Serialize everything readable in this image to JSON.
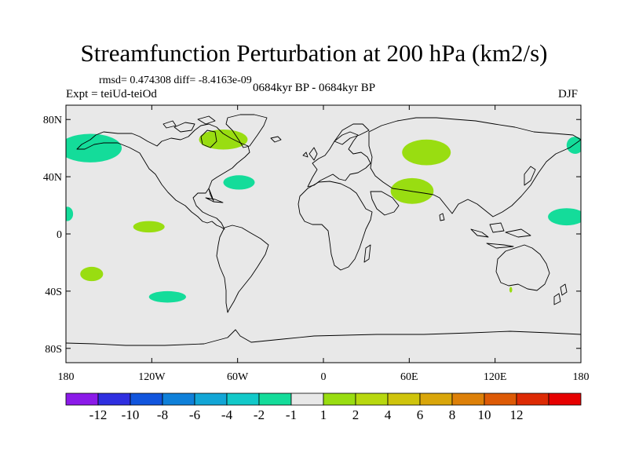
{
  "title": "Streamfunction Perturbation at 200 hPa (km2/s)",
  "stats": "rmsd= 0.474308 diff= -8.4163e-09",
  "experiment": "Expt = teiUd-teiOd",
  "period": "0684kyr BP - 0684kyr BP",
  "season": "DJF",
  "map": {
    "lon_range": [
      -180,
      180
    ],
    "lat_range": [
      -90,
      90
    ],
    "background_color": "#e8e8e8",
    "coast_color": "#000000",
    "y_ticks": [
      {
        "lat": 80,
        "label": "80N"
      },
      {
        "lat": 40,
        "label": "40N"
      },
      {
        "lat": 0,
        "label": "0"
      },
      {
        "lat": -40,
        "label": "40S"
      },
      {
        "lat": -80,
        "label": "80S"
      }
    ],
    "x_ticks": [
      {
        "lon": -180,
        "label": "180"
      },
      {
        "lon": -120,
        "label": "120W"
      },
      {
        "lon": -60,
        "label": "60W"
      },
      {
        "lon": 0,
        "label": "0"
      },
      {
        "lon": 60,
        "label": "60E"
      },
      {
        "lon": 120,
        "label": "120E"
      },
      {
        "lon": 180,
        "label": "180"
      }
    ],
    "anomaly_regions": [
      {
        "name": "north-pacific-low",
        "lon": -163,
        "lat": 60,
        "rlon": 22,
        "rlat": 10,
        "color": "#14dc9a"
      },
      {
        "name": "dateline-east-high-lat",
        "lon": 176,
        "lat": 62,
        "rlon": 6,
        "rlat": 6,
        "color": "#14dc9a"
      },
      {
        "name": "greenland-high",
        "lon": -70,
        "lat": 66,
        "rlon": 17,
        "rlat": 7,
        "color": "#99dd11"
      },
      {
        "name": "west-atlantic-low",
        "lon": -59,
        "lat": 36,
        "rlon": 11,
        "rlat": 5,
        "color": "#14dc9a"
      },
      {
        "name": "russia-high",
        "lon": 72,
        "lat": 57,
        "rlon": 17,
        "rlat": 9,
        "color": "#99dd11"
      },
      {
        "name": "middle-east-high",
        "lon": 62,
        "lat": 30,
        "rlon": 15,
        "rlat": 9,
        "color": "#99dd11"
      },
      {
        "name": "east-pacific-high",
        "lon": -122,
        "lat": 5,
        "rlon": 11,
        "rlat": 4,
        "color": "#99dd11"
      },
      {
        "name": "west-pacific-low",
        "lon": 170,
        "lat": 12,
        "rlon": 13,
        "rlat": 6,
        "color": "#14dc9a"
      },
      {
        "name": "dateline-west-tropical-low",
        "lon": -179,
        "lat": 14,
        "rlon": 4,
        "rlat": 5,
        "color": "#14dc9a"
      },
      {
        "name": "south-pacific-high",
        "lon": -162,
        "lat": -28,
        "rlon": 8,
        "rlat": 5,
        "color": "#99dd11"
      },
      {
        "name": "southeast-pacific-low",
        "lon": -109,
        "lat": -44,
        "rlon": 13,
        "rlat": 4,
        "color": "#14dc9a"
      },
      {
        "name": "australia-small-high",
        "lon": 131,
        "lat": -39,
        "rlon": 1,
        "rlat": 2,
        "color": "#99dd11"
      }
    ]
  },
  "colorbar": {
    "colors": [
      "#8b1ae8",
      "#2f2fe0",
      "#1155dd",
      "#0f80d9",
      "#12a6d6",
      "#12c9c9",
      "#14dc9a",
      "#e8e8e8",
      "#99dd11",
      "#b8d80f",
      "#cfc40c",
      "#d9a60a",
      "#dd8008",
      "#dd5a06",
      "#dd2a04",
      "#e60000"
    ],
    "labels": [
      "-12",
      "-10",
      "-8",
      "-6",
      "-4",
      "-2",
      "-1",
      "1",
      "2",
      "4",
      "6",
      "8",
      "10",
      "12"
    ]
  }
}
